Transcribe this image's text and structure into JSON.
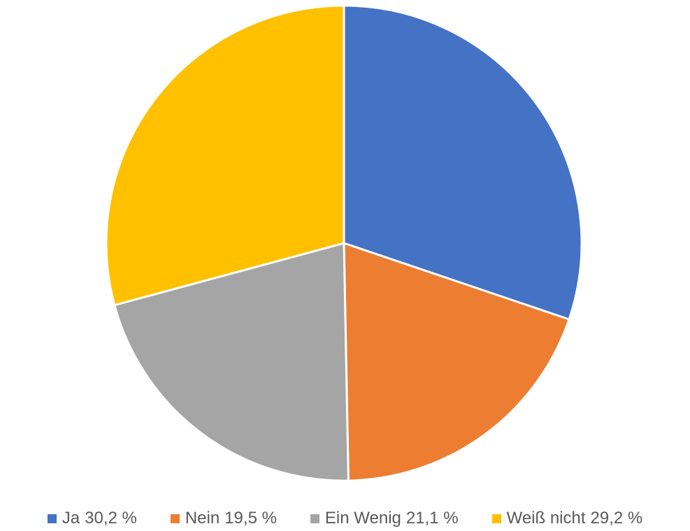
{
  "chart_data": {
    "type": "pie",
    "categories": [
      "Ja",
      "Nein",
      "Ein Wenig",
      "Weiß nicht"
    ],
    "values": [
      30.2,
      19.5,
      21.1,
      29.2
    ],
    "value_labels": [
      "30,2 %",
      "19,5 %",
      "21,1 %",
      "29,2 %"
    ],
    "colors": [
      "#4472c4",
      "#ed7d31",
      "#a5a5a5",
      "#ffc000"
    ],
    "legend": "bottom"
  }
}
